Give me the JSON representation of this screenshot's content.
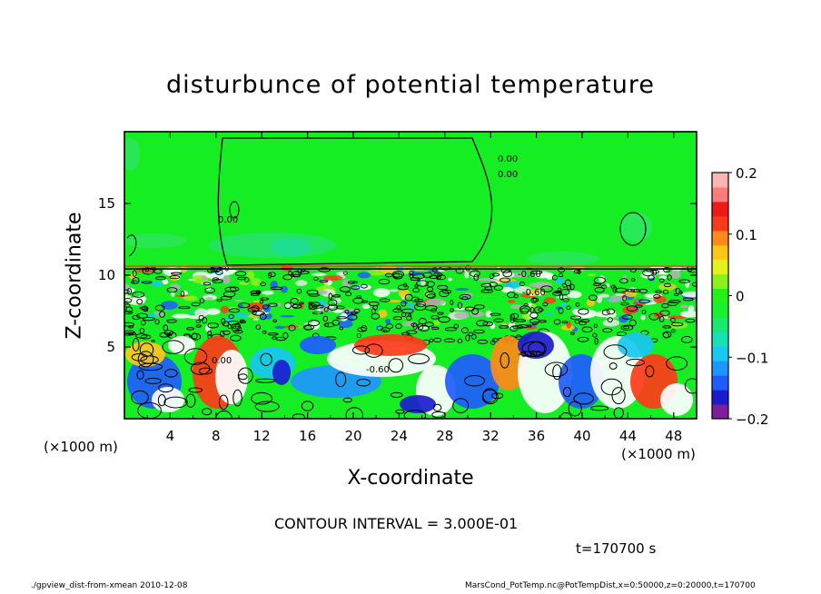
{
  "chart_data": {
    "type": "heatmap",
    "title": "disturbunce of potential temperature",
    "xlabel": "X-coordinate",
    "ylabel": "Z-coordinate",
    "x_unit": "(×1000 m)",
    "z_unit": "(×1000 m)",
    "xlim": [
      0,
      50
    ],
    "zlim": [
      0,
      20
    ],
    "x_ticks": [
      "4",
      "8",
      "12",
      "16",
      "20",
      "24",
      "28",
      "32",
      "36",
      "40",
      "44",
      "48"
    ],
    "z_ticks": [
      "5",
      "10",
      "15"
    ],
    "contour_interval": "CONTOUR INTERVAL = 3.000E-01",
    "time_label": "t=170700 s",
    "contour_labels": [
      "-0.60",
      "-0.60",
      "0.00",
      "0.00",
      "0.00",
      "0.00",
      "-0.60",
      "-0.60"
    ],
    "colorbar": {
      "range": [
        -0.2,
        0.2
      ],
      "tick_labels": [
        "0.2",
        "0.1",
        "0",
        "−0.1",
        "−0.2"
      ],
      "tick_values": [
        0.2,
        0.1,
        0,
        -0.1,
        -0.2
      ],
      "colors": [
        "#7e1e9c",
        "#1c1ccf",
        "#1e5cff",
        "#1e96ff",
        "#17c8f0",
        "#16e0b8",
        "#18e870",
        "#19f02e",
        "#22f11a",
        "#8ef01a",
        "#e6f01a",
        "#ffc61a",
        "#ff8a1a",
        "#ff3a1a",
        "#ee1a1a",
        "#ff7a7a",
        "#ffb4b4"
      ]
    }
  },
  "footer": {
    "left": "./gpview_dist-from-xmean  2010-12-08",
    "right": "MarsCond_PotTemp.nc@PotTempDist,x=0:50000,z=0:20000,t=170700"
  }
}
